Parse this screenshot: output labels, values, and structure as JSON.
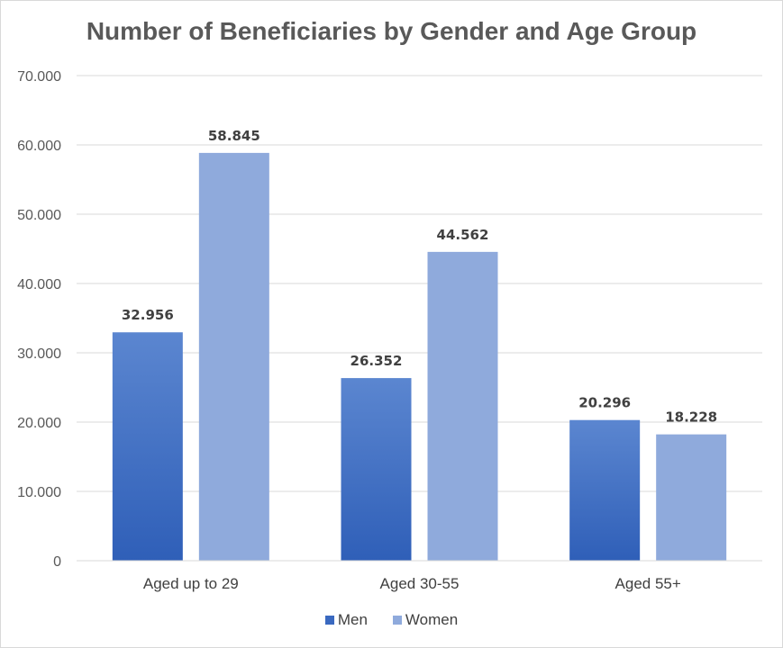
{
  "chart_data": {
    "type": "bar",
    "title": "Number of Beneficiaries by Gender and Age Group",
    "categories": [
      "Aged up to 29",
      "Aged 30-55",
      "Aged 55+"
    ],
    "series": [
      {
        "name": "Men",
        "values": [
          32956,
          26352,
          20296
        ],
        "labels": [
          "32.956",
          "26.352",
          "20.296"
        ],
        "color": "#4472c4"
      },
      {
        "name": "Women",
        "values": [
          58845,
          44562,
          18228
        ],
        "labels": [
          "58.845",
          "44.562",
          "18.228"
        ],
        "color": "#8faadc"
      }
    ],
    "ylim": [
      0,
      70000
    ],
    "yticks": [
      0,
      10000,
      20000,
      30000,
      40000,
      50000,
      60000,
      70000
    ],
    "ytick_labels": [
      "0",
      "10.000",
      "20.000",
      "30.000",
      "40.000",
      "50.000",
      "60.000",
      "70.000"
    ],
    "grid": true,
    "legend_position": "bottom"
  }
}
